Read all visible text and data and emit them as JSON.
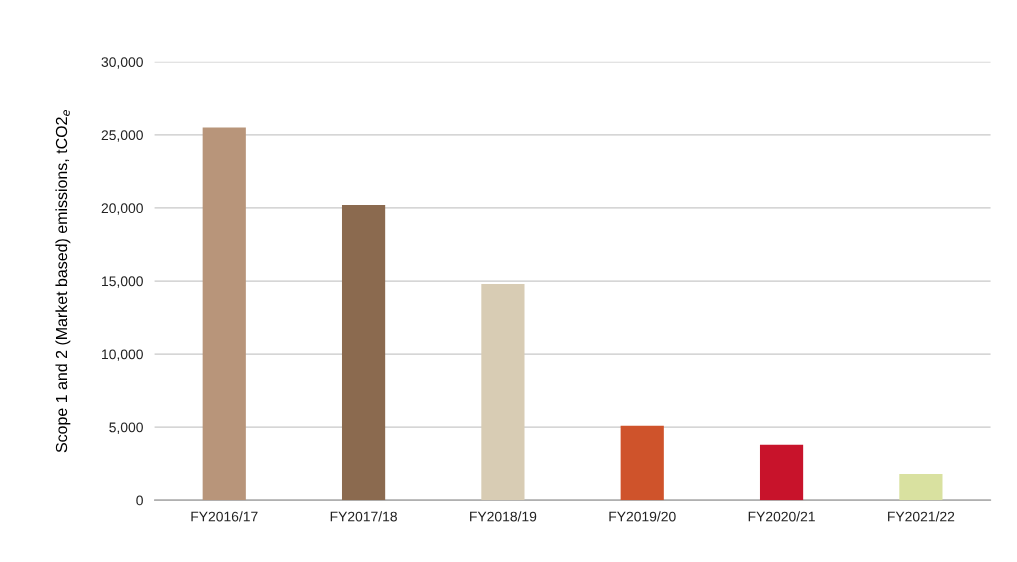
{
  "chart_data": {
    "type": "bar",
    "ylabel": "Scope 1 and 2 (Market based) emissions, tCO2$_{e}$",
    "categories": [
      "FY2016/17",
      "FY2017/18",
      "FY2018/19",
      "FY2019/20",
      "FY2020/21",
      "FY2021/22"
    ],
    "values": [
      25500,
      20200,
      14800,
      5100,
      3800,
      1800
    ],
    "colors": [
      "#b8957a",
      "#8b6a4f",
      "#d8ccb4",
      "#cf532b",
      "#c8132b",
      "#d9e1a0"
    ],
    "ylim": [
      0,
      30000
    ],
    "yticks": [
      {
        "value": 0,
        "label": "0"
      },
      {
        "value": 5000,
        "label": "5,000"
      },
      {
        "value": 10000,
        "label": "10,000"
      },
      {
        "value": 15000,
        "label": "15,000"
      },
      {
        "value": 20000,
        "label": "20,000"
      },
      {
        "value": 25000,
        "label": "25,000"
      },
      {
        "value": 30000,
        "label": "30,000"
      }
    ],
    "grid": "y"
  }
}
